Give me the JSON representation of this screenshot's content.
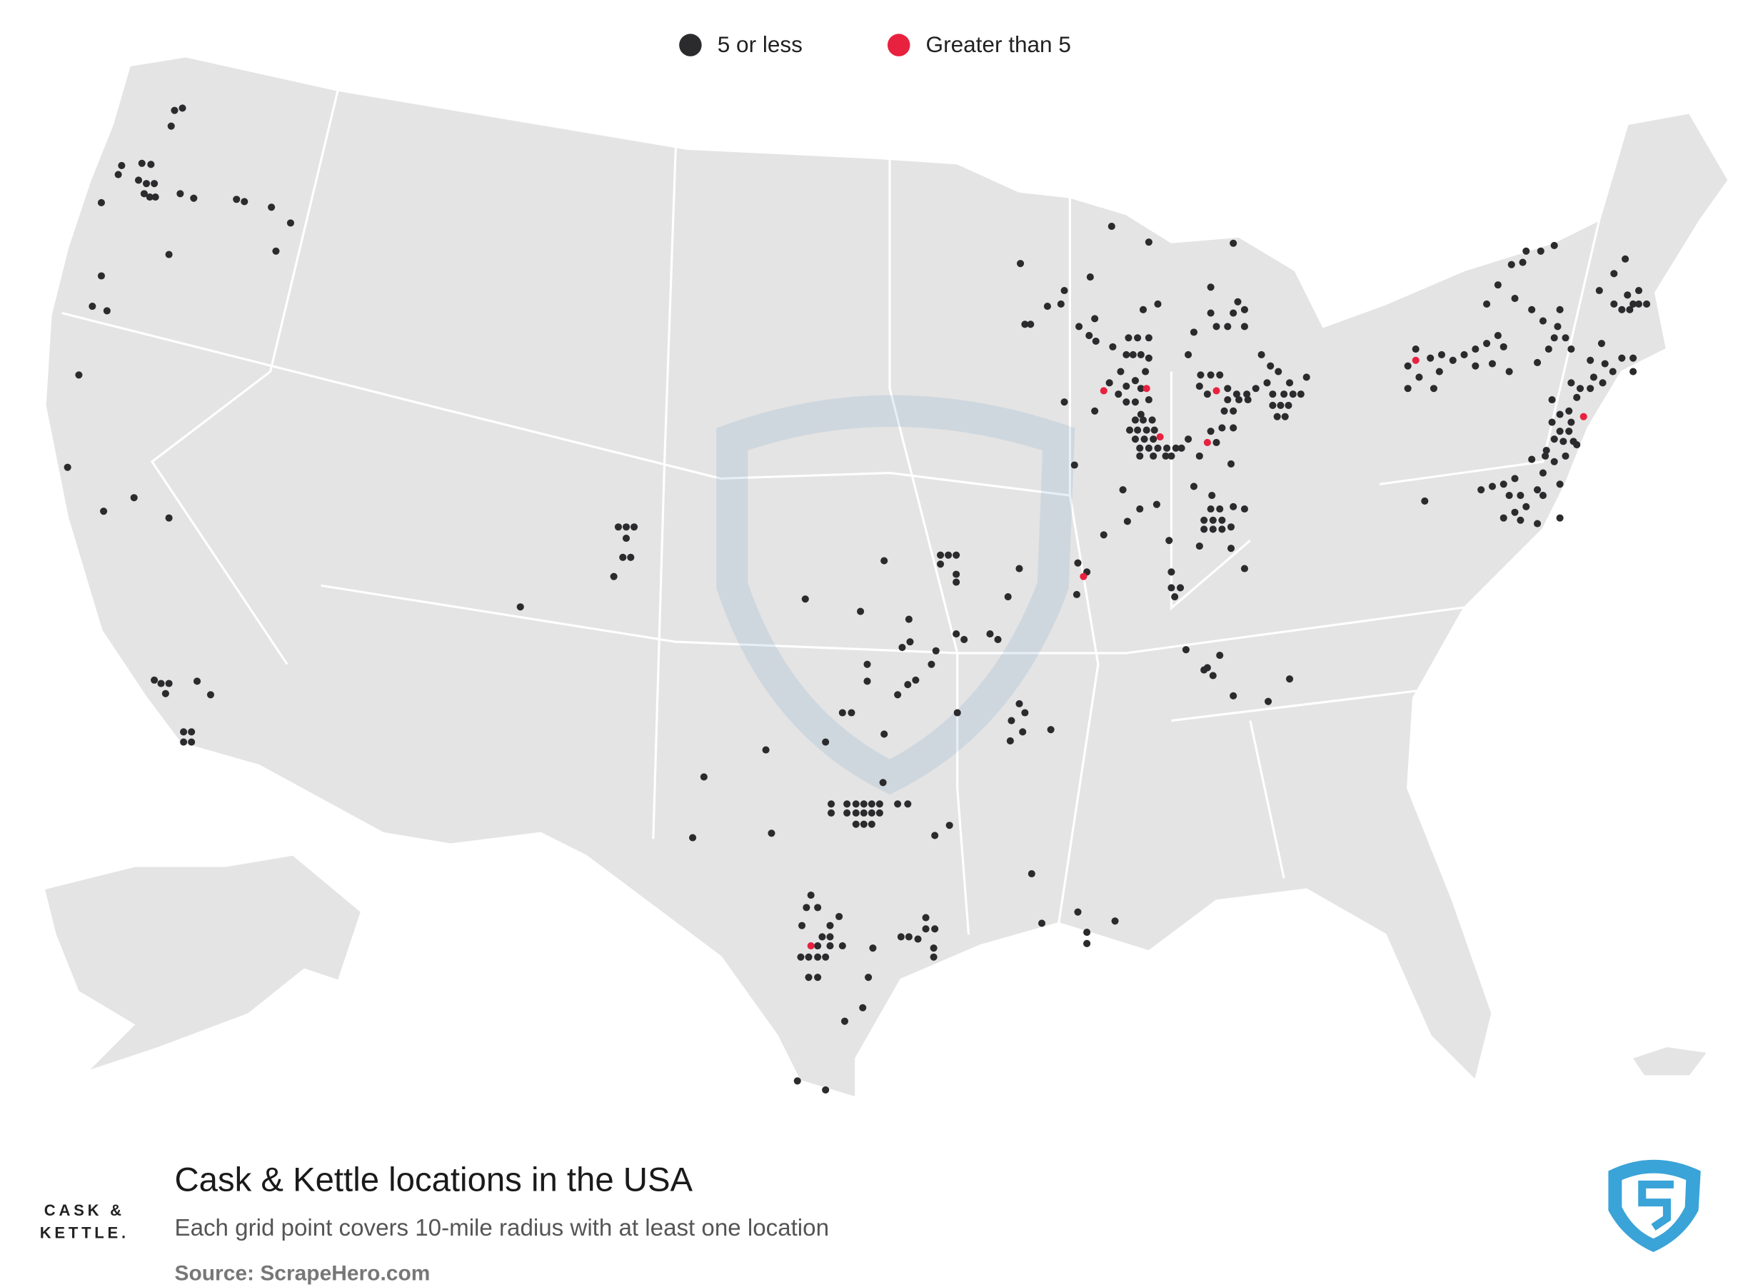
{
  "legend": [
    {
      "label": "5 or less",
      "color": "#2b2a2d"
    },
    {
      "label": "Greater than 5",
      "color": "#e8213f"
    }
  ],
  "title": "Cask & Kettle locations in the USA",
  "subtitle": "Each grid point covers 10-mile radius with at least one location",
  "source": "Source: ScrapeHero.com",
  "logo": {
    "line1": "CASK &",
    "line2": "KETTLE."
  }
}
